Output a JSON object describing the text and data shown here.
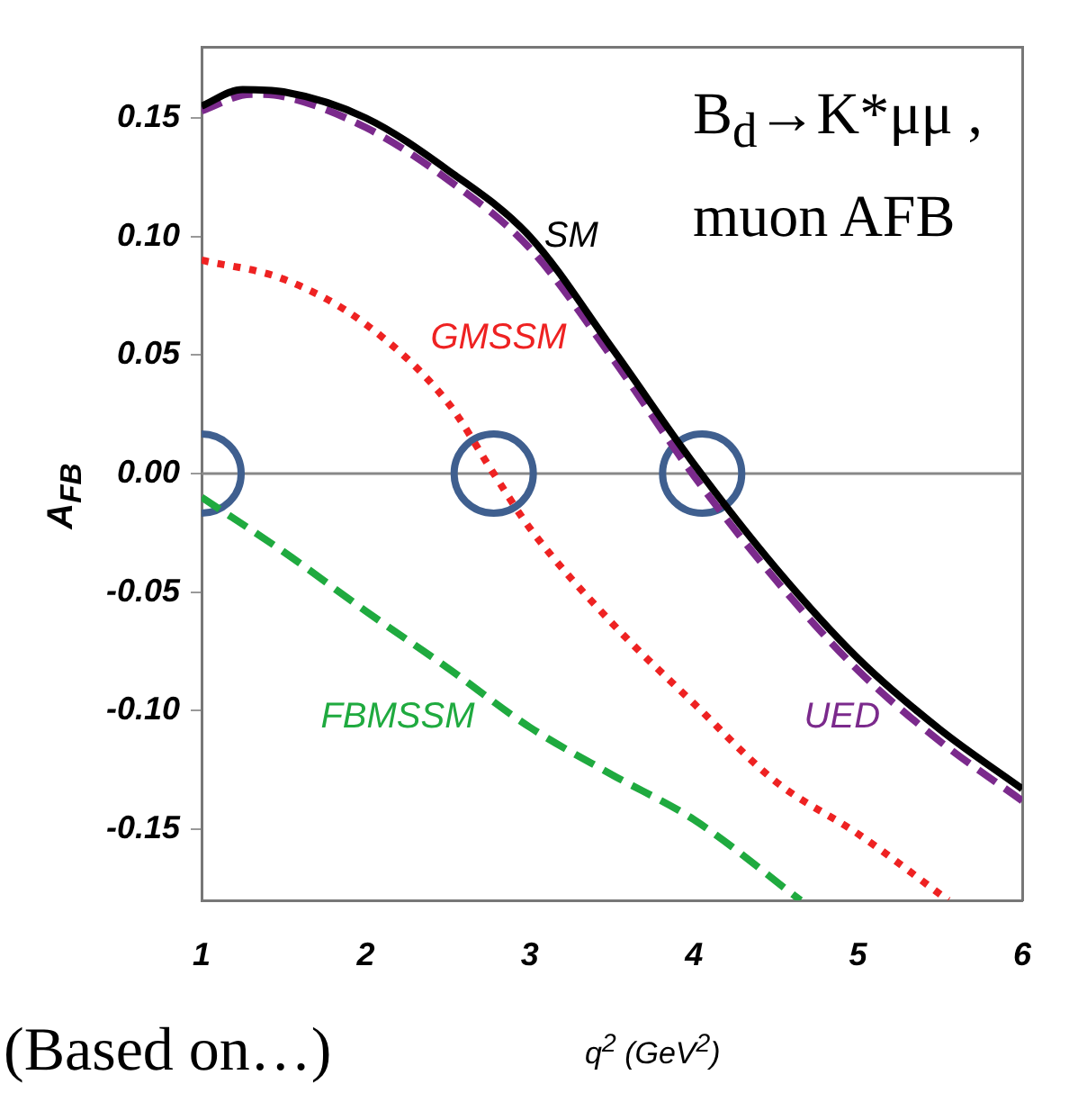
{
  "chart_data": {
    "type": "line",
    "title": "B$_{d}$→K*μμ , muon AFB",
    "xlabel": "q$^{2}$ (GeV$^{2}$)",
    "ylabel": "A$_{FB}$",
    "annotations": [
      "(Based on…)"
    ],
    "xlim": [
      1,
      6
    ],
    "xticks": [
      1,
      2,
      3,
      4,
      5,
      6
    ],
    "ylim": [
      -0.18,
      0.18
    ],
    "yticks": [
      {
        "value": -0.15,
        "label": "-0.15"
      },
      {
        "value": -0.1,
        "label": "-0.10"
      },
      {
        "value": -0.05,
        "label": "-0.05"
      },
      {
        "value": 0,
        "label": "0.00"
      },
      {
        "value": 0.05,
        "label": "0.05"
      },
      {
        "value": 0.1,
        "label": "0.10"
      },
      {
        "value": 0.15,
        "label": "0.15"
      }
    ],
    "grid": false,
    "legend": false,
    "marker": "none",
    "ref_lines": [
      {
        "axis": "y",
        "value": 0,
        "color": "#888888"
      }
    ],
    "series": [
      {
        "name": "SM",
        "color": "#000000",
        "line_style": "solid",
        "x": [
          1,
          1.25,
          1.5,
          2,
          2.5,
          3,
          3.5,
          4,
          4.5,
          5,
          5.5,
          6
        ],
        "values": [
          0.155,
          0.162,
          0.161,
          0.15,
          0.128,
          0.1,
          0.053,
          0.004,
          -0.04,
          -0.078,
          -0.108,
          -0.133
        ]
      },
      {
        "name": "UED",
        "color": "#7b2a8c",
        "line_style": "dashed",
        "x": [
          1,
          1.3,
          1.5,
          2,
          2.5,
          3,
          3.5,
          4,
          4.5,
          5,
          5.5,
          6
        ],
        "values": [
          0.153,
          0.16,
          0.159,
          0.146,
          0.124,
          0.095,
          0.049,
          -0.001,
          -0.045,
          -0.083,
          -0.113,
          -0.138
        ]
      },
      {
        "name": "GMSSM",
        "color": "#ee2222",
        "line_style": "dotted",
        "x": [
          1,
          1.5,
          2,
          2.5,
          2.78,
          3,
          3.5,
          4,
          4.5,
          5,
          5.55
        ],
        "values": [
          0.09,
          0.082,
          0.063,
          0.03,
          0,
          -0.023,
          -0.063,
          -0.097,
          -0.13,
          -0.152,
          -0.18
        ]
      },
      {
        "name": "FBMSSM",
        "color": "#1faa3f",
        "line_style": "dashed",
        "x": [
          1,
          1.5,
          2,
          2.5,
          3,
          3.5,
          4,
          4.65
        ],
        "values": [
          -0.01,
          -0.033,
          -0.058,
          -0.082,
          -0.107,
          -0.127,
          -0.146,
          -0.18
        ]
      },
      {
        "type": "scatter",
        "marker": "circle",
        "color": "#3f5f8f",
        "x": [
          1,
          2.78,
          4.05
        ],
        "values": [
          0,
          0,
          0
        ]
      }
    ]
  }
}
